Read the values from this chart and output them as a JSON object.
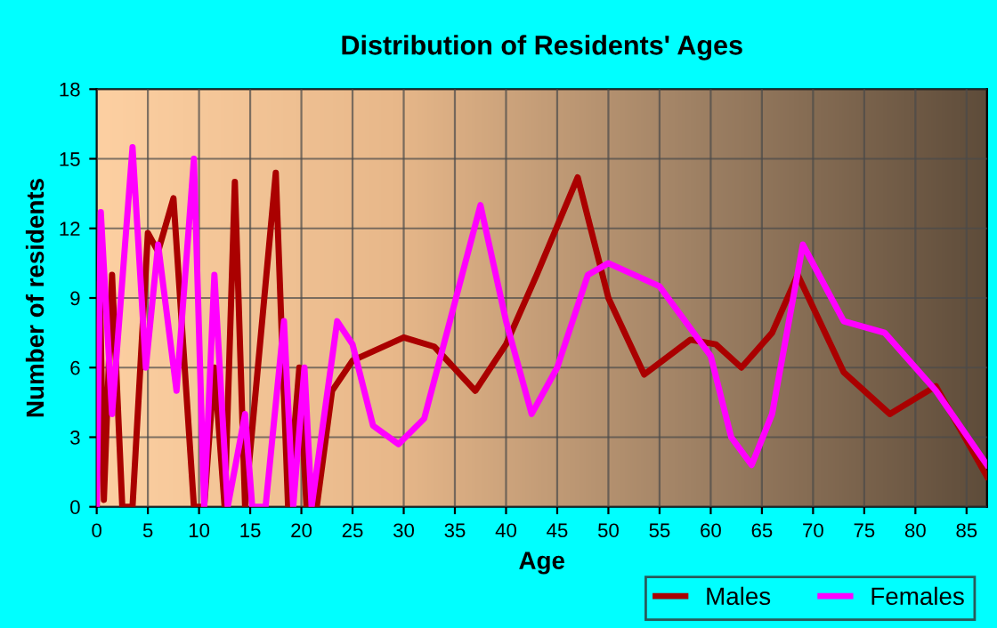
{
  "chart_data": {
    "type": "line",
    "title": "Distribution of Residents' Ages",
    "xlabel": "Age",
    "ylabel": "Number of residents",
    "xlim": [
      0,
      87
    ],
    "xticks": [
      0,
      5,
      10,
      15,
      20,
      25,
      30,
      35,
      40,
      45,
      50,
      55,
      60,
      65,
      70,
      75,
      80,
      85
    ],
    "ylim": [
      0,
      18
    ],
    "yticks": [
      0,
      3,
      6,
      9,
      12,
      15,
      18
    ],
    "grid": true,
    "legend": "bottom right",
    "marker": "none",
    "line_style": "solid",
    "series": [
      {
        "name": "Males",
        "color": "#aa0000",
        "x": [
          0,
          0.3,
          0.7,
          1.5,
          2.5,
          3.5,
          5,
          6,
          7.5,
          9.5,
          10.5,
          11.5,
          12.5,
          13.5,
          14.5,
          17.5,
          18.7,
          19.8,
          20.5,
          21.5,
          23,
          25,
          30,
          33,
          37,
          40,
          43,
          47,
          50,
          53.5,
          58,
          60.5,
          63,
          66,
          68.5,
          73,
          77.5,
          82,
          87
        ],
        "values": [
          0,
          9.7,
          0.3,
          10,
          0,
          0,
          11.8,
          11,
          13.3,
          0,
          0,
          6,
          0,
          14,
          0,
          14.4,
          0,
          6,
          0,
          0,
          5,
          6.3,
          7.3,
          6.9,
          5,
          7,
          10,
          14.2,
          9,
          5.7,
          7.2,
          7,
          6,
          7.5,
          10,
          5.8,
          4,
          5.2,
          1.3
        ]
      },
      {
        "name": "Females",
        "color": "#ff00ff",
        "x": [
          0,
          0.4,
          1.5,
          3.5,
          4.8,
          6,
          7.8,
          9.5,
          10.5,
          11.5,
          12.8,
          14.5,
          15.2,
          16.5,
          18.3,
          19.2,
          20.3,
          21,
          23.5,
          25,
          27,
          29.5,
          32,
          37.5,
          40,
          42.5,
          45,
          48,
          50,
          55,
          60,
          62,
          64,
          66,
          69,
          73,
          77,
          82,
          87
        ],
        "values": [
          0,
          12.7,
          4,
          15.5,
          6,
          11.3,
          5,
          15,
          0,
          10,
          0,
          4,
          0,
          0,
          8,
          0,
          6,
          0,
          8,
          7,
          3.5,
          2.7,
          3.8,
          13,
          8,
          4,
          6,
          10,
          10.5,
          9.5,
          6.5,
          3,
          1.8,
          4,
          11.3,
          8,
          7.5,
          5,
          1.8
        ]
      }
    ]
  }
}
